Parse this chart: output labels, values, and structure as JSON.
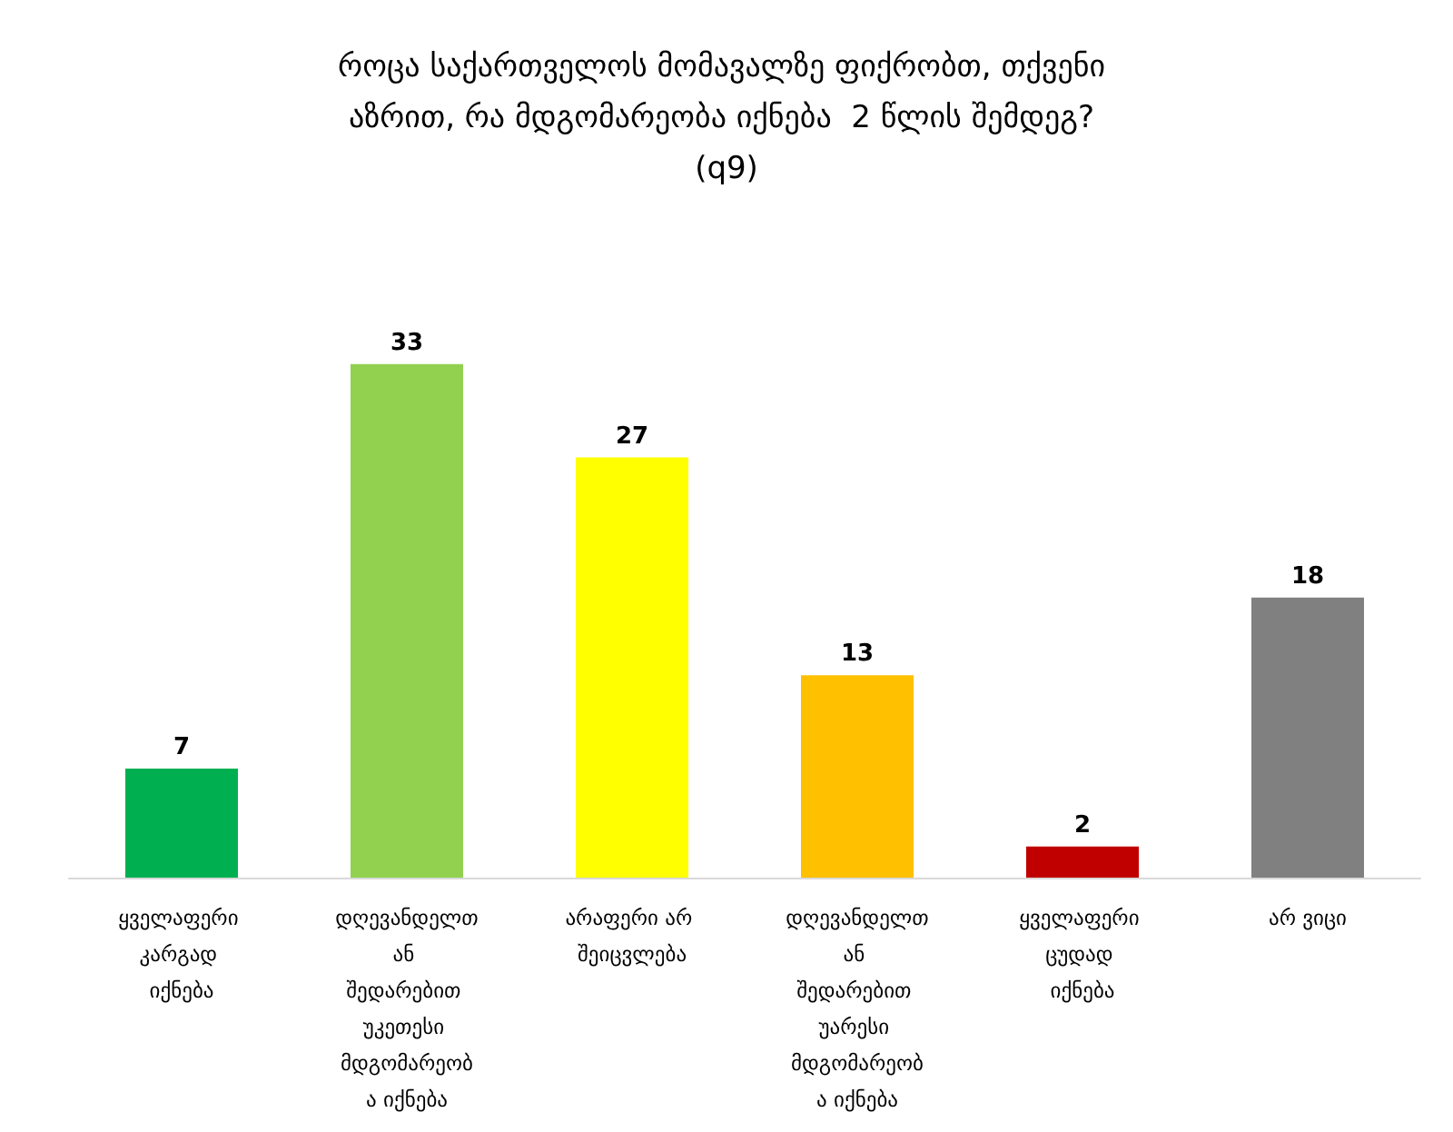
{
  "chart_data": {
    "type": "bar",
    "title": "როცა საქართველოს მომავალზე ფიქრობთ, თქვენი აზრით, რა მდგომარეობა იქნება  2 წლის შემდეგ? (q9)",
    "categories": [
      "ყველაფერი კარგად იქნება",
      "დღევანდელთან შედარებით უკეთესი მდგომარეობა იქნება",
      "არაფერი არ შეიცვლება",
      "დღევანდელთან შედარებით უარესი მდგომარეობა იქნება",
      "ყველაფერი ცუდად იქნება",
      "არ ვიცი"
    ],
    "values": [
      7,
      33,
      27,
      13,
      2,
      18
    ],
    "colors": [
      "#00b050",
      "#92d050",
      "#ffff00",
      "#ffc000",
      "#c00000",
      "#808080"
    ],
    "data_labels": true
  }
}
